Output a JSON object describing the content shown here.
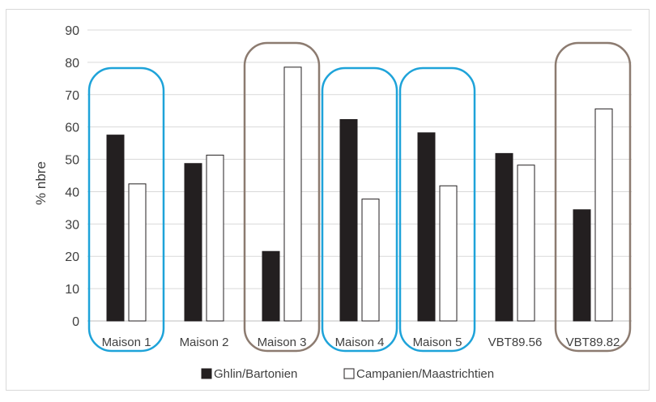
{
  "chart_data": {
    "type": "bar",
    "categories": [
      "Maison 1",
      "Maison 2",
      "Maison 3",
      "Maison 4",
      "Maison 5",
      "VBT89.56",
      "VBT89.82"
    ],
    "series": [
      {
        "name": "Ghlin/Bartonien",
        "color": "#231f20",
        "values": [
          57.5,
          48.7,
          21.5,
          62.3,
          58.2,
          51.8,
          34.4
        ]
      },
      {
        "name": "Campanien/Maastrichtien",
        "color": "#ffffff",
        "values": [
          42.4,
          51.3,
          78.5,
          37.7,
          41.8,
          48.2,
          65.6
        ]
      }
    ],
    "ylabel": "% nbre",
    "xlabel": "",
    "ylim": [
      0,
      90
    ],
    "yticks": [
      0,
      10,
      20,
      30,
      40,
      50,
      60,
      70,
      80,
      90
    ],
    "grid": true,
    "legend": "bottom",
    "highlights": [
      {
        "category": "Maison 1",
        "color": "#1ea3d9"
      },
      {
        "category": "Maison 3",
        "color": "#8c7b70"
      },
      {
        "category": "Maison 4",
        "color": "#1ea3d9"
      },
      {
        "category": "Maison 5",
        "color": "#1ea3d9"
      },
      {
        "category": "VBT89.82",
        "color": "#8c7b70"
      }
    ]
  }
}
